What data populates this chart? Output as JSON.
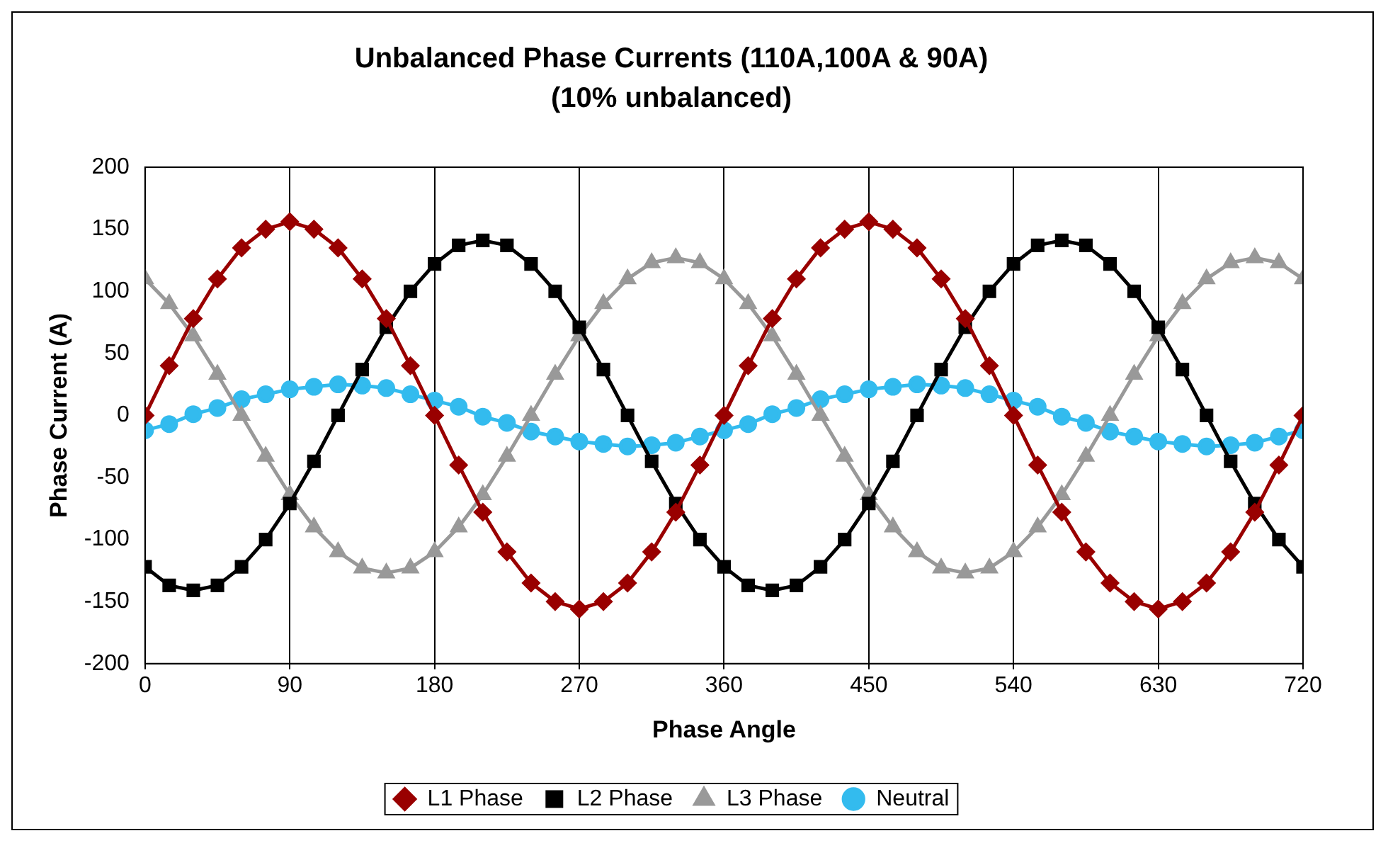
{
  "chart_data": {
    "type": "line",
    "title": "Unbalanced Phase Currents (110A,100A & 90A)",
    "subtitle": "(10% unbalanced)",
    "xlabel": "Phase Angle",
    "ylabel": "Phase Current (A)",
    "x": [
      0,
      15,
      30,
      45,
      60,
      75,
      90,
      105,
      120,
      135,
      150,
      165,
      180,
      195,
      210,
      225,
      240,
      255,
      270,
      285,
      300,
      315,
      330,
      345,
      360,
      375,
      390,
      405,
      420,
      435,
      450,
      465,
      480,
      495,
      510,
      525,
      540,
      555,
      570,
      585,
      600,
      615,
      630,
      645,
      660,
      675,
      690,
      705,
      720
    ],
    "series": [
      {
        "name": "L1 Phase",
        "color": "#990000",
        "marker": "diamond",
        "values": [
          0,
          40,
          78,
          110,
          135,
          150,
          156,
          150,
          135,
          110,
          78,
          40,
          0,
          -40,
          -78,
          -110,
          -135,
          -150,
          -156,
          -150,
          -135,
          -110,
          -78,
          -40,
          0,
          40,
          78,
          110,
          135,
          150,
          156,
          150,
          135,
          110,
          78,
          40,
          0,
          -40,
          -78,
          -110,
          -135,
          -150,
          -156,
          -150,
          -135,
          -110,
          -78,
          -40,
          0
        ]
      },
      {
        "name": "L2 Phase",
        "color": "#000000",
        "marker": "square",
        "values": [
          -122,
          -137,
          -141,
          -137,
          -122,
          -100,
          -71,
          -37,
          0,
          37,
          71,
          100,
          122,
          137,
          141,
          137,
          122,
          100,
          71,
          37,
          0,
          -37,
          -71,
          -100,
          -122,
          -137,
          -141,
          -137,
          -122,
          -100,
          -71,
          -37,
          0,
          37,
          71,
          100,
          122,
          137,
          141,
          137,
          122,
          100,
          71,
          37,
          0,
          -37,
          -71,
          -100,
          -122
        ]
      },
      {
        "name": "L3 Phase",
        "color": "#999999",
        "marker": "triangle",
        "values": [
          110,
          90,
          64,
          33,
          0,
          -33,
          -64,
          -90,
          -110,
          -123,
          -127,
          -123,
          -110,
          -90,
          -64,
          -33,
          0,
          33,
          64,
          90,
          110,
          123,
          127,
          123,
          110,
          90,
          64,
          33,
          0,
          -33,
          -64,
          -90,
          -110,
          -123,
          -127,
          -123,
          -110,
          -90,
          -64,
          -33,
          0,
          33,
          64,
          90,
          110,
          123,
          127,
          123,
          110
        ]
      },
      {
        "name": "Neutral",
        "color": "#33bbee",
        "marker": "circle",
        "values": [
          -12,
          -7,
          1,
          6,
          13,
          17,
          21,
          23,
          25,
          24,
          22,
          17,
          12,
          7,
          -1,
          -6,
          -13,
          -17,
          -21,
          -23,
          -25,
          -24,
          -22,
          -17,
          -12,
          -7,
          1,
          6,
          13,
          17,
          21,
          23,
          25,
          24,
          22,
          17,
          12,
          7,
          -1,
          -6,
          -13,
          -17,
          -21,
          -23,
          -25,
          -24,
          -22,
          -17,
          -12
        ]
      }
    ],
    "xlim": [
      0,
      720
    ],
    "xticks": [
      0,
      90,
      180,
      270,
      360,
      450,
      540,
      630,
      720
    ],
    "ylim": [
      -200,
      200
    ],
    "yticks": [
      -200,
      -150,
      -100,
      -50,
      0,
      50,
      100,
      150,
      200
    ],
    "grid": "x",
    "legend": "bottom",
    "line_style": "solid"
  }
}
